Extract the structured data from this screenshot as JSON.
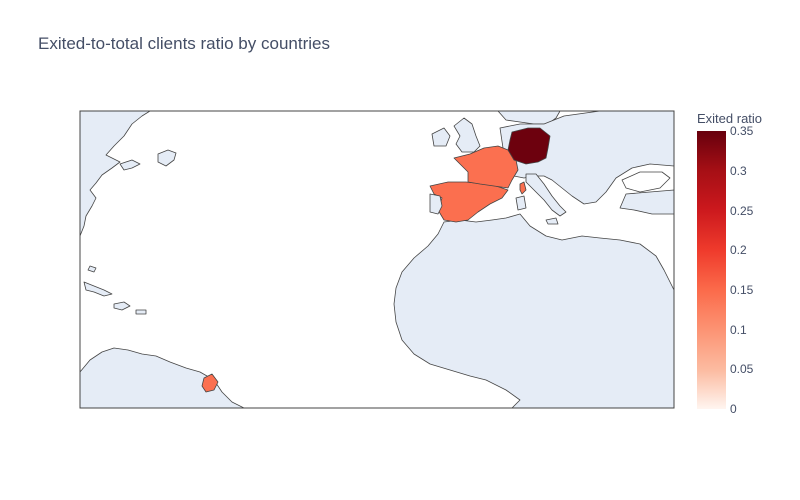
{
  "title": "Exited-to-total clients ratio by countries",
  "colorbar": {
    "title": "Exited ratio",
    "ticks": [
      "0.35",
      "0.3",
      "0.25",
      "0.2",
      "0.15",
      "0.1",
      "0.05",
      "0"
    ],
    "scale": "Reds",
    "range": [
      0,
      0.35
    ]
  },
  "map_data": {
    "type": "choropleth",
    "projection": "equirectangular",
    "lon_range": [
      -80,
      20
    ],
    "lat_range": [
      0,
      55
    ],
    "locations": [
      {
        "country": "Germany",
        "value": 0.324
      },
      {
        "country": "France",
        "value": 0.162
      },
      {
        "country": "Spain",
        "value": 0.167
      }
    ],
    "colors": {
      "land": "#e5ecf6",
      "ocean": "#ffffff",
      "border": "#444444",
      "germany": "#6d010e",
      "france": "#fb7050",
      "spain": "#fb6f4f"
    }
  }
}
